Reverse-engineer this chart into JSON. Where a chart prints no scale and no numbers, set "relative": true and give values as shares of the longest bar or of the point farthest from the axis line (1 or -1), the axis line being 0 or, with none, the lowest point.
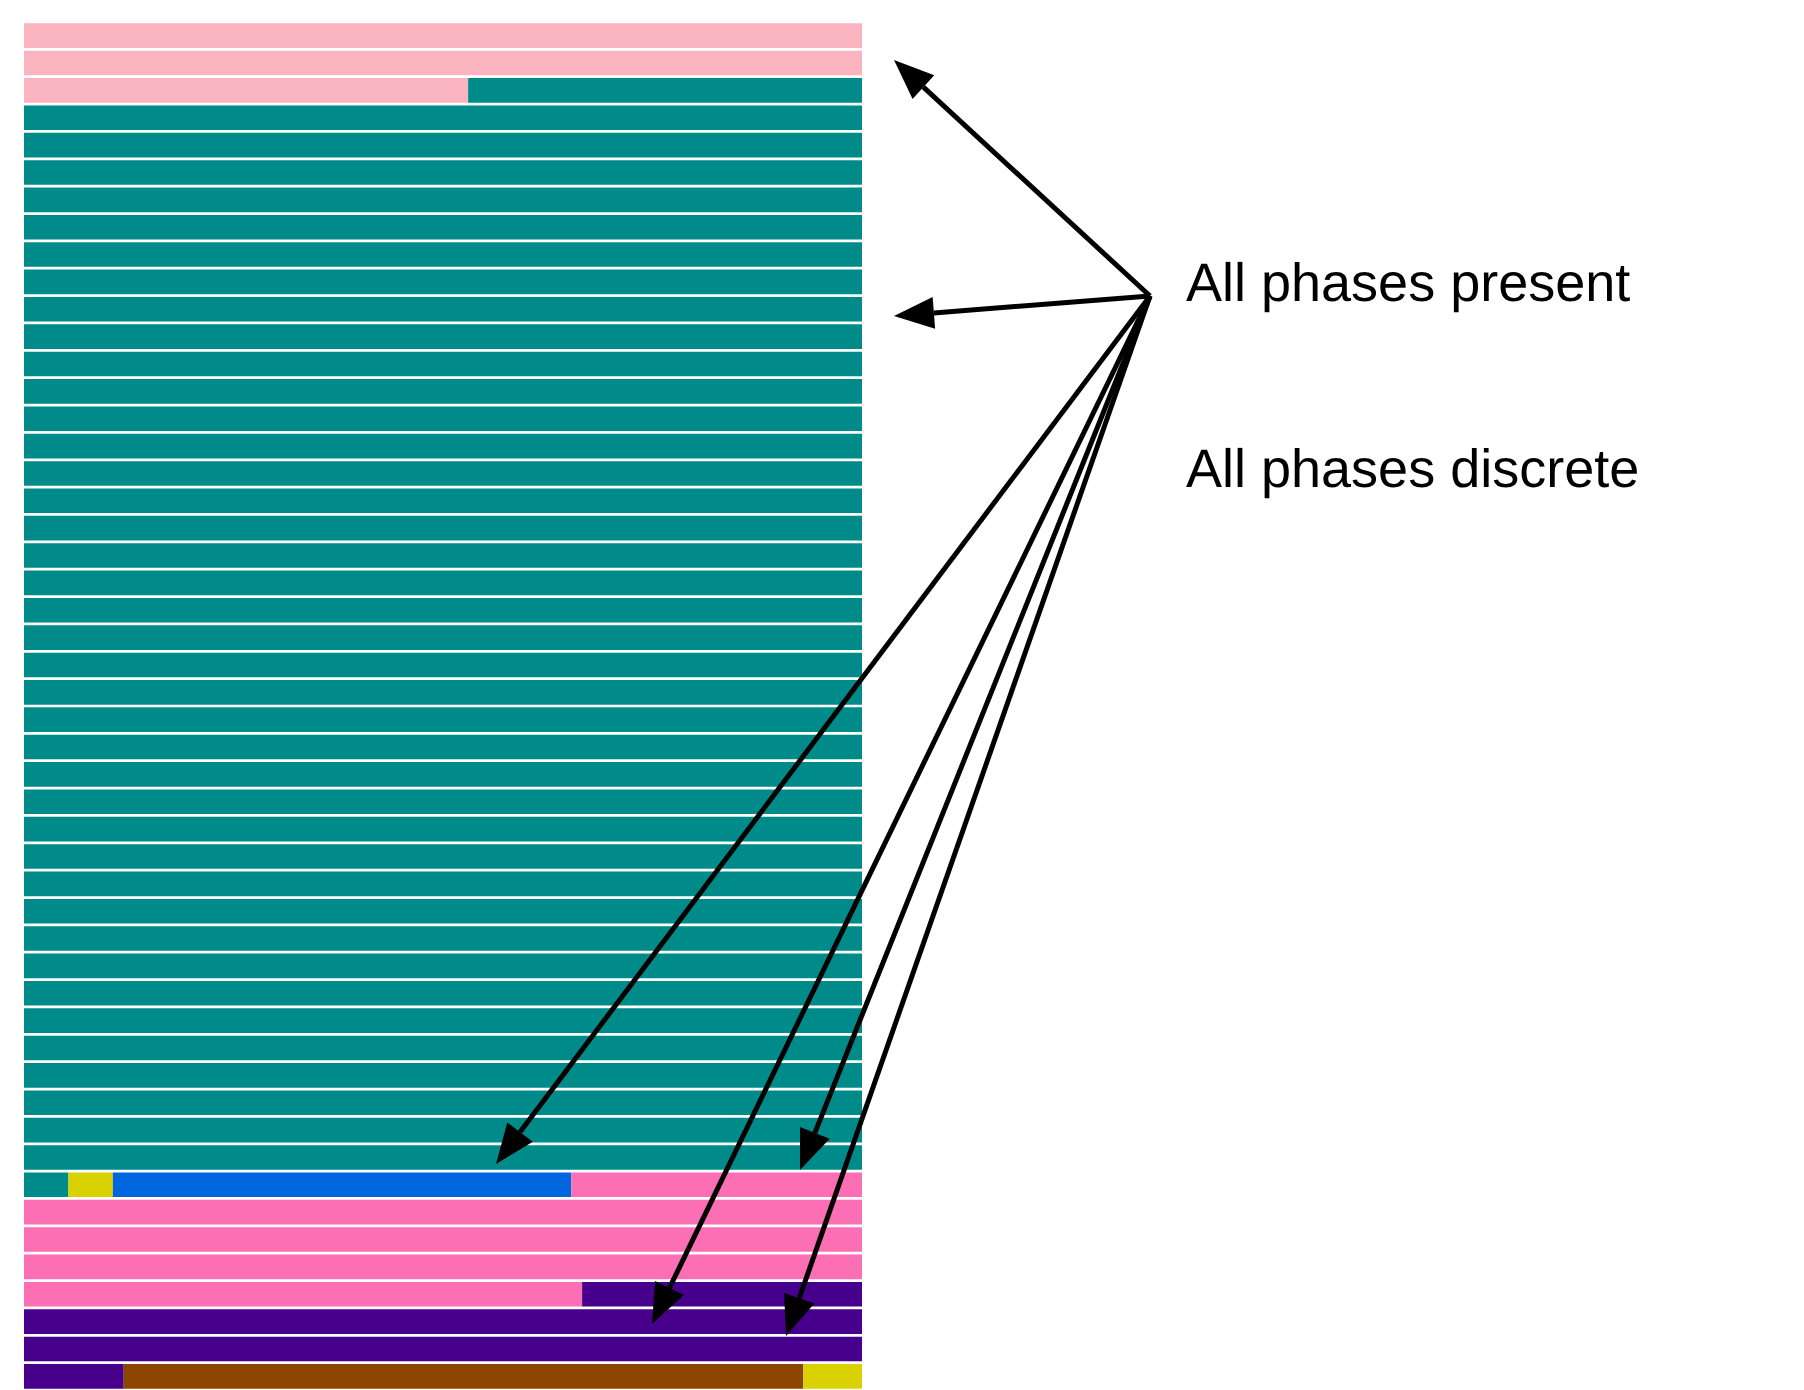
{
  "chart_data": {
    "type": "bar",
    "orientation": "horizontal",
    "stacked": true,
    "relative": true,
    "categories": [
      null,
      null,
      null,
      null,
      null,
      null,
      null,
      null,
      null,
      null,
      null,
      null,
      null,
      null,
      null,
      null,
      null,
      null,
      null,
      null,
      null,
      null,
      null,
      null,
      null,
      null,
      null,
      null,
      null,
      null,
      null,
      null,
      null,
      null,
      null,
      null,
      null,
      null,
      null,
      null,
      null,
      null,
      null,
      null,
      null,
      null,
      null,
      null,
      null,
      null
    ],
    "series": [
      {
        "color": "#f9b4c0",
        "values": [
          1,
          1,
          0.53,
          null,
          null,
          null,
          null,
          null,
          null,
          null,
          null,
          null,
          null,
          null,
          null,
          null,
          null,
          null,
          null,
          null,
          null,
          null,
          null,
          null,
          null,
          null,
          null,
          null,
          null,
          null,
          null,
          null,
          null,
          null,
          null,
          null,
          null,
          null,
          null,
          null,
          null,
          null,
          null,
          null,
          null,
          null,
          null,
          null,
          null,
          null
        ]
      },
      {
        "color": "#008b8b",
        "values": [
          null,
          null,
          0.47,
          1,
          1,
          1,
          1,
          1,
          1,
          1,
          1,
          1,
          1,
          1,
          1,
          1,
          1,
          1,
          1,
          1,
          1,
          1,
          1,
          1,
          1,
          1,
          1,
          1,
          1,
          1,
          1,
          1,
          1,
          1,
          1,
          1,
          1,
          1,
          1,
          1,
          1,
          1,
          0.053,
          null,
          null,
          null,
          null,
          null,
          null,
          null
        ]
      },
      {
        "color": "#d9d200",
        "values": [
          null,
          null,
          null,
          null,
          null,
          null,
          null,
          null,
          null,
          null,
          null,
          null,
          null,
          null,
          null,
          null,
          null,
          null,
          null,
          null,
          null,
          null,
          null,
          null,
          null,
          null,
          null,
          null,
          null,
          null,
          null,
          null,
          null,
          null,
          null,
          null,
          null,
          null,
          null,
          null,
          null,
          null,
          0.053,
          null,
          null,
          null,
          null,
          null,
          null,
          null
        ]
      },
      {
        "color": "#0066dd",
        "values": [
          null,
          null,
          null,
          null,
          null,
          null,
          null,
          null,
          null,
          null,
          null,
          null,
          null,
          null,
          null,
          null,
          null,
          null,
          null,
          null,
          null,
          null,
          null,
          null,
          null,
          null,
          null,
          null,
          null,
          null,
          null,
          null,
          null,
          null,
          null,
          null,
          null,
          null,
          null,
          null,
          null,
          null,
          0.547,
          null,
          null,
          null,
          null,
          null,
          null,
          null
        ]
      },
      {
        "color": "#fc6fb4",
        "values": [
          null,
          null,
          null,
          null,
          null,
          null,
          null,
          null,
          null,
          null,
          null,
          null,
          null,
          null,
          null,
          null,
          null,
          null,
          null,
          null,
          null,
          null,
          null,
          null,
          null,
          null,
          null,
          null,
          null,
          null,
          null,
          null,
          null,
          null,
          null,
          null,
          null,
          null,
          null,
          null,
          null,
          null,
          0.347,
          1,
          1,
          1,
          0.666,
          null,
          null,
          null
        ]
      },
      {
        "color": "#46008b",
        "values": [
          null,
          null,
          null,
          null,
          null,
          null,
          null,
          null,
          null,
          null,
          null,
          null,
          null,
          null,
          null,
          null,
          null,
          null,
          null,
          null,
          null,
          null,
          null,
          null,
          null,
          null,
          null,
          null,
          null,
          null,
          null,
          null,
          null,
          null,
          null,
          null,
          null,
          null,
          null,
          null,
          null,
          null,
          null,
          null,
          null,
          null,
          0.334,
          1,
          1,
          0.119
        ]
      },
      {
        "color": "#8b4500",
        "values": [
          null,
          null,
          null,
          null,
          null,
          null,
          null,
          null,
          null,
          null,
          null,
          null,
          null,
          null,
          null,
          null,
          null,
          null,
          null,
          null,
          null,
          null,
          null,
          null,
          null,
          null,
          null,
          null,
          null,
          null,
          null,
          null,
          null,
          null,
          null,
          null,
          null,
          null,
          null,
          null,
          null,
          null,
          null,
          null,
          null,
          null,
          null,
          null,
          null,
          0.811
        ]
      },
      {
        "color": "#d9d200",
        "values": [
          null,
          null,
          null,
          null,
          null,
          null,
          null,
          null,
          null,
          null,
          null,
          null,
          null,
          null,
          null,
          null,
          null,
          null,
          null,
          null,
          null,
          null,
          null,
          null,
          null,
          null,
          null,
          null,
          null,
          null,
          null,
          null,
          null,
          null,
          null,
          null,
          null,
          null,
          null,
          null,
          null,
          null,
          null,
          null,
          null,
          null,
          null,
          null,
          null,
          0.07
        ]
      }
    ],
    "annotations": [
      "All phases present",
      "All phases discrete"
    ]
  }
}
